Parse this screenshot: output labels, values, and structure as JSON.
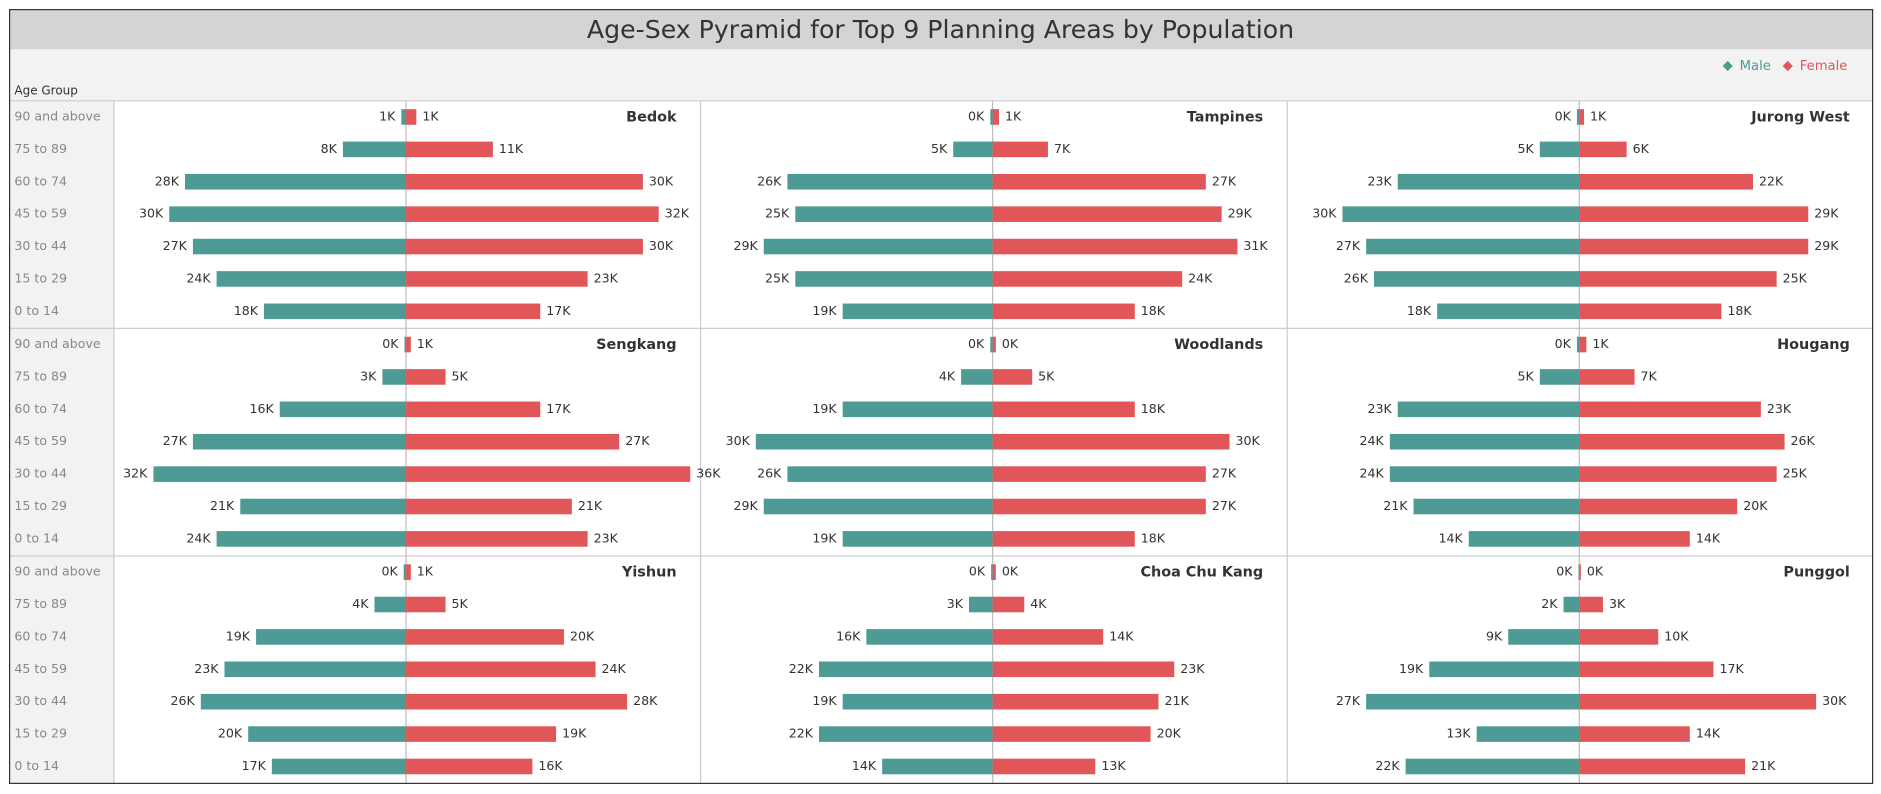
{
  "chart_data": {
    "type": "pyramid",
    "title": "Age-Sex Pyramid for Top 9 Planning Areas by Population",
    "y_label": "Age Group",
    "legend": "top-right",
    "categories": [
      "90 and above",
      "75 to 89",
      "60 to 74",
      "45 to 59",
      "30 to 44",
      "15 to 29",
      "0 to 14"
    ],
    "xlim": [
      0,
      37
    ],
    "series": [
      {
        "name": "Male",
        "color": "#4e9a94"
      },
      {
        "name": "Female",
        "color": "#e15759"
      }
    ],
    "panels": [
      {
        "title": "Bedok",
        "series": [
          {
            "values": [
              0.6,
              8,
              28,
              30,
              27,
              24,
              18
            ],
            "value_labels": [
              "1K",
              "8K",
              "28K",
              "30K",
              "27K",
              "24K",
              "18K"
            ]
          },
          {
            "values": [
              1.3,
              11,
              30,
              32,
              30,
              23,
              17
            ],
            "value_labels": [
              "1K",
              "11K",
              "30K",
              "32K",
              "30K",
              "23K",
              "17K"
            ]
          }
        ]
      },
      {
        "title": "Tampines",
        "series": [
          {
            "values": [
              0.3,
              5,
              26,
              25,
              29,
              25,
              19
            ],
            "value_labels": [
              "0K",
              "5K",
              "26K",
              "25K",
              "29K",
              "25K",
              "19K"
            ]
          },
          {
            "values": [
              0.8,
              7,
              27,
              29,
              31,
              24,
              18
            ],
            "value_labels": [
              "1K",
              "7K",
              "27K",
              "29K",
              "31K",
              "24K",
              "18K"
            ]
          }
        ]
      },
      {
        "title": "Jurong West",
        "series": [
          {
            "values": [
              0.3,
              5,
              23,
              30,
              27,
              26,
              18
            ],
            "value_labels": [
              "0K",
              "5K",
              "23K",
              "30K",
              "27K",
              "26K",
              "18K"
            ]
          },
          {
            "values": [
              0.6,
              6,
              22,
              29,
              29,
              25,
              18
            ],
            "value_labels": [
              "1K",
              "6K",
              "22K",
              "29K",
              "29K",
              "25K",
              "18K"
            ]
          }
        ]
      },
      {
        "title": "Sengkang",
        "series": [
          {
            "values": [
              0.2,
              3,
              16,
              27,
              32,
              21,
              24
            ],
            "value_labels": [
              "0K",
              "3K",
              "16K",
              "27K",
              "32K",
              "21K",
              "24K"
            ]
          },
          {
            "values": [
              0.6,
              5,
              17,
              27,
              36,
              21,
              23
            ],
            "value_labels": [
              "1K",
              "5K",
              "17K",
              "27K",
              "36K",
              "21K",
              "23K"
            ]
          }
        ]
      },
      {
        "title": "Woodlands",
        "series": [
          {
            "values": [
              0.3,
              4,
              19,
              30,
              26,
              29,
              19
            ],
            "value_labels": [
              "0K",
              "4K",
              "19K",
              "30K",
              "26K",
              "29K",
              "19K"
            ]
          },
          {
            "values": [
              0.4,
              5,
              18,
              30,
              27,
              27,
              18
            ],
            "value_labels": [
              "0K",
              "5K",
              "18K",
              "30K",
              "27K",
              "27K",
              "18K"
            ]
          }
        ]
      },
      {
        "title": "Hougang",
        "series": [
          {
            "values": [
              0.3,
              5,
              23,
              24,
              24,
              21,
              14
            ],
            "value_labels": [
              "0K",
              "5K",
              "23K",
              "24K",
              "24K",
              "21K",
              "14K"
            ]
          },
          {
            "values": [
              0.9,
              7,
              23,
              26,
              25,
              20,
              14
            ],
            "value_labels": [
              "1K",
              "7K",
              "23K",
              "26K",
              "25K",
              "20K",
              "14K"
            ]
          }
        ]
      },
      {
        "title": "Yishun",
        "series": [
          {
            "values": [
              0.3,
              4,
              19,
              23,
              26,
              20,
              17
            ],
            "value_labels": [
              "0K",
              "4K",
              "19K",
              "23K",
              "26K",
              "20K",
              "17K"
            ]
          },
          {
            "values": [
              0.6,
              5,
              20,
              24,
              28,
              19,
              16
            ],
            "value_labels": [
              "1K",
              "5K",
              "20K",
              "24K",
              "28K",
              "19K",
              "16K"
            ]
          }
        ]
      },
      {
        "title": "Choa Chu Kang",
        "series": [
          {
            "values": [
              0.2,
              3,
              16,
              22,
              19,
              22,
              14
            ],
            "value_labels": [
              "0K",
              "3K",
              "16K",
              "22K",
              "19K",
              "22K",
              "14K"
            ]
          },
          {
            "values": [
              0.4,
              4,
              14,
              23,
              21,
              20,
              13
            ],
            "value_labels": [
              "0K",
              "4K",
              "14K",
              "23K",
              "21K",
              "20K",
              "13K"
            ]
          }
        ]
      },
      {
        "title": "Punggol",
        "series": [
          {
            "values": [
              0.1,
              2,
              9,
              19,
              27,
              13,
              22
            ],
            "value_labels": [
              "0K",
              "2K",
              "9K",
              "19K",
              "27K",
              "13K",
              "22K"
            ]
          },
          {
            "values": [
              0.2,
              3,
              10,
              17,
              30,
              14,
              21
            ],
            "value_labels": [
              "0K",
              "3K",
              "10K",
              "17K",
              "30K",
              "14K",
              "21K"
            ]
          }
        ]
      }
    ]
  }
}
